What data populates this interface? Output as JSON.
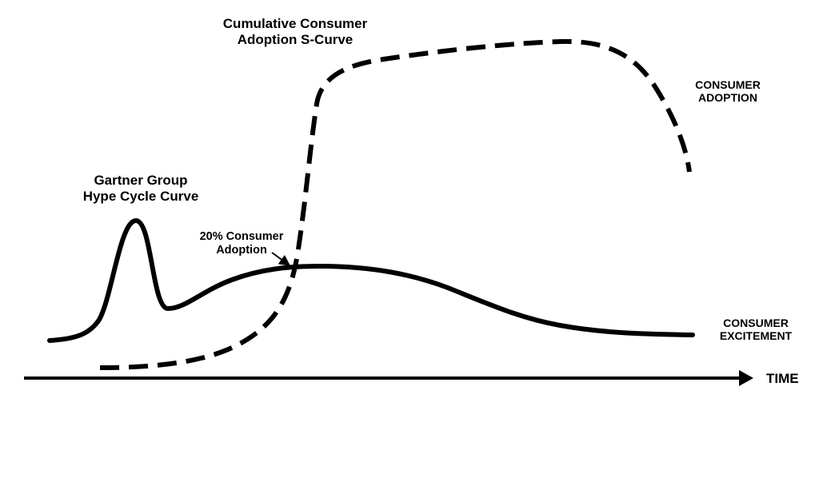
{
  "diagram": {
    "labels": {
      "scurve_title_line1": "Cumulative Consumer",
      "scurve_title_line2": "Adoption S-Curve",
      "hype_title_line1": "Gartner Group",
      "hype_title_line2": "Hype Cycle Curve",
      "callout_line1": "20% Consumer",
      "callout_line2": "Adoption",
      "adoption_line1": "CONSUMER",
      "adoption_line2": "ADOPTION",
      "excitement_line1": "CONSUMER",
      "excitement_line2": "EXCITEMENT",
      "axis_label": "TIME"
    },
    "curves": {
      "hype_cycle": {
        "style": "solid",
        "represents": "CONSUMER EXCITEMENT"
      },
      "adoption_s_curve": {
        "style": "dashed",
        "represents": "CONSUMER ADOPTION"
      }
    },
    "colors": {
      "stroke": "#000000",
      "background": "#ffffff"
    }
  }
}
